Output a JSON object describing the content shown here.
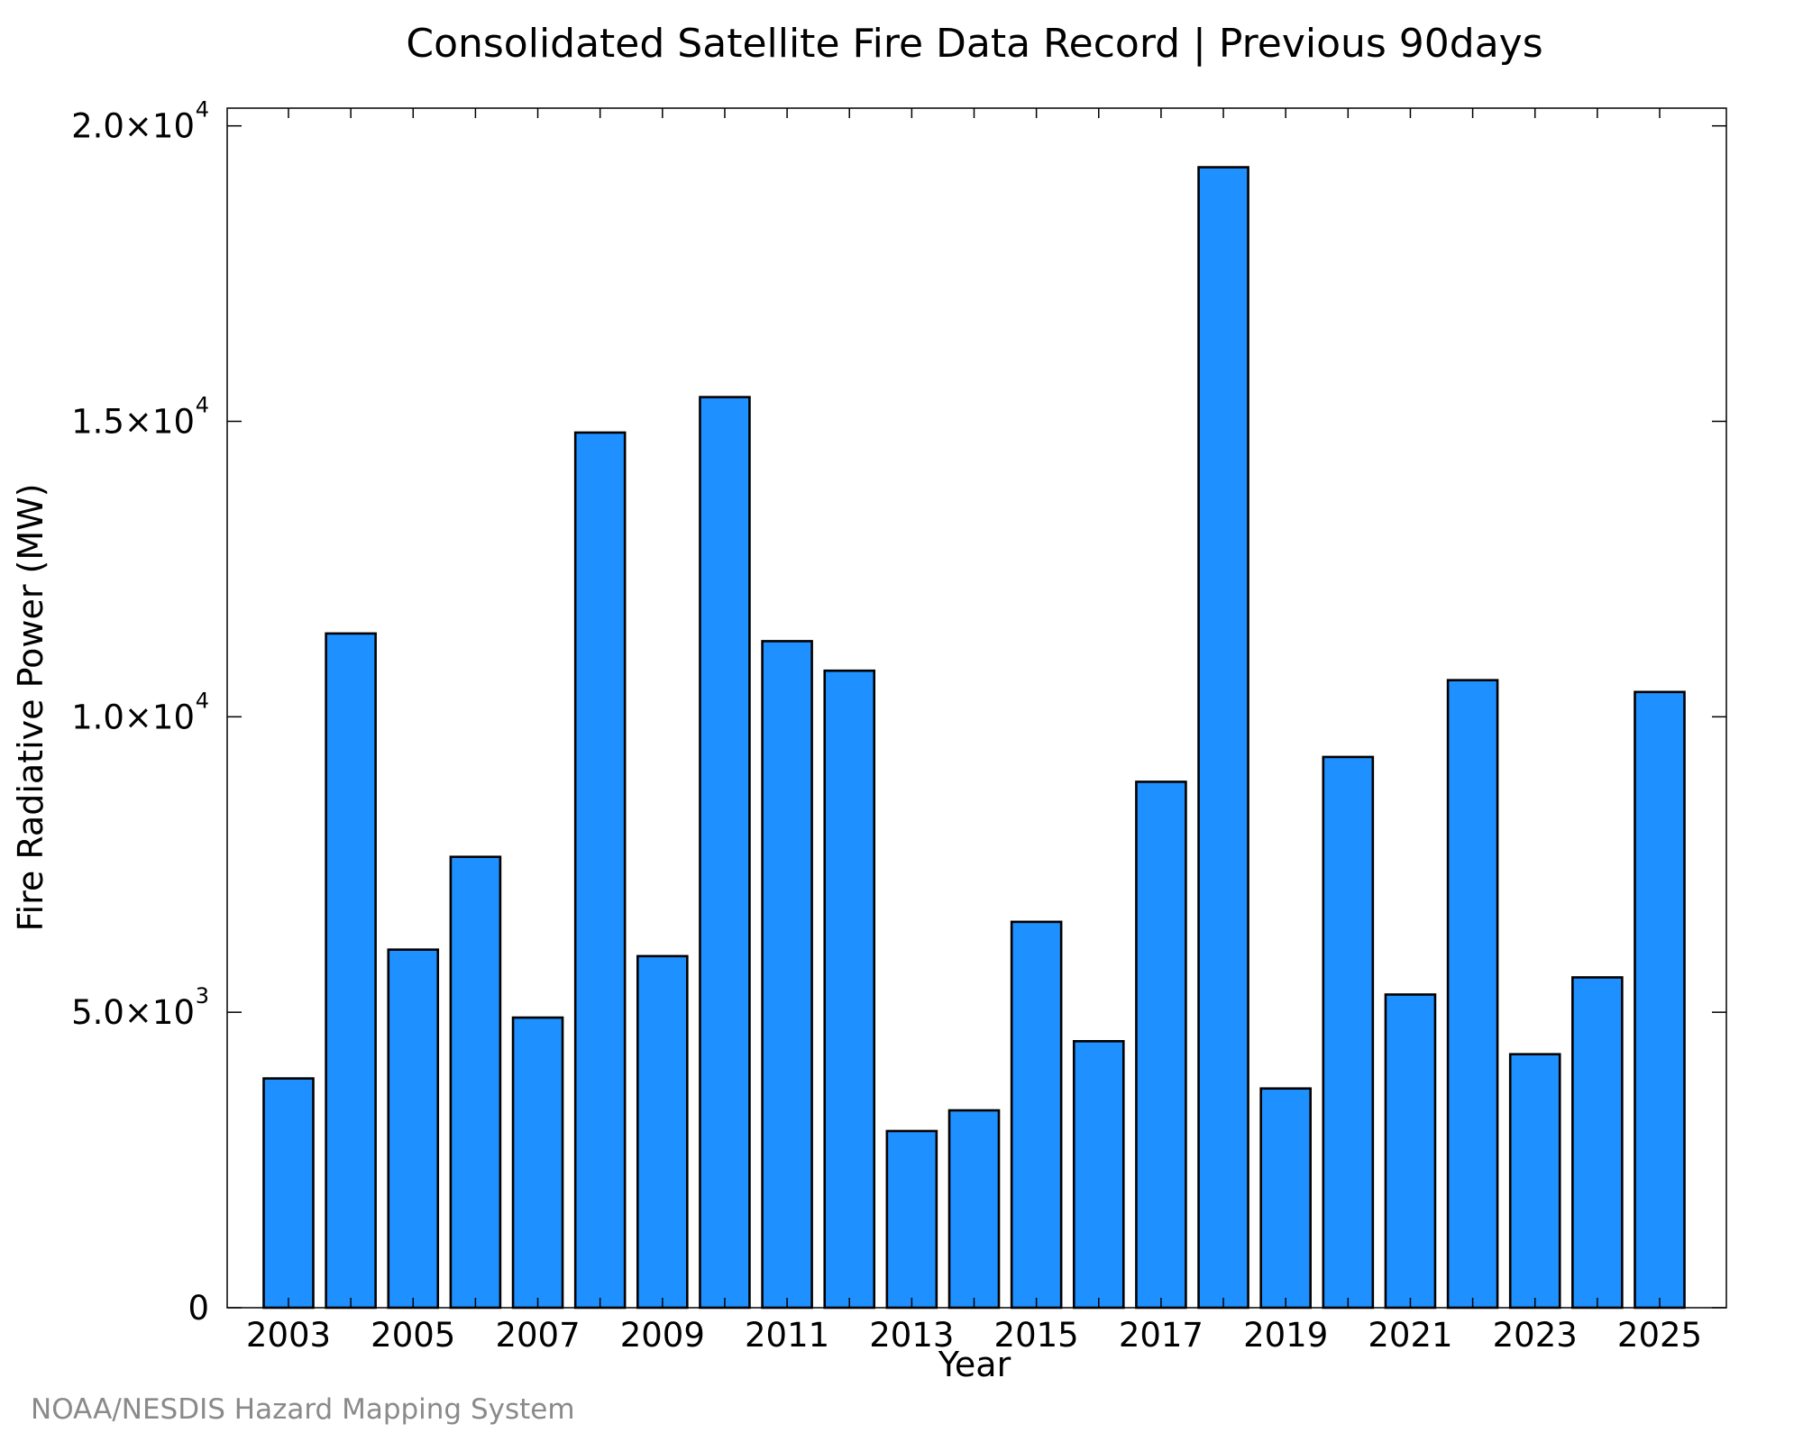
{
  "chart_data": {
    "type": "bar",
    "title": "Consolidated Satellite Fire Data Record | Previous 90days",
    "xlabel": "Year",
    "ylabel": "Fire Radiative Power (MW)",
    "categories": [
      "2003",
      "2004",
      "2005",
      "2006",
      "2007",
      "2008",
      "2009",
      "2010",
      "2011",
      "2012",
      "2013",
      "2014",
      "2015",
      "2016",
      "2017",
      "2018",
      "2019",
      "2020",
      "2021",
      "2022",
      "2023",
      "2024",
      "2025"
    ],
    "values": [
      3880,
      11410,
      6060,
      7630,
      4910,
      14810,
      5950,
      15410,
      11280,
      10780,
      2990,
      3340,
      6530,
      4510,
      8900,
      19300,
      3710,
      9320,
      5300,
      10620,
      4290,
      5590,
      10420
    ],
    "xtick_labels": [
      "2003",
      "2005",
      "2007",
      "2009",
      "2011",
      "2013",
      "2015",
      "2017",
      "2019",
      "2021",
      "2023",
      "2025"
    ],
    "yticks": [
      {
        "value": 0,
        "mantissa": "0",
        "exponent": ""
      },
      {
        "value": 5000,
        "mantissa": "5.0×10",
        "exponent": "3"
      },
      {
        "value": 10000,
        "mantissa": "1.0×10",
        "exponent": "4"
      },
      {
        "value": 15000,
        "mantissa": "1.5×10",
        "exponent": "4"
      },
      {
        "value": 20000,
        "mantissa": "2.0×10",
        "exponent": "4"
      }
    ],
    "ylim": [
      0,
      20300
    ],
    "grid": false,
    "legend": "none",
    "bar_color": "#1e90ff",
    "edge_color": "#000000",
    "credit": "NOAA/NESDIS Hazard Mapping System"
  }
}
